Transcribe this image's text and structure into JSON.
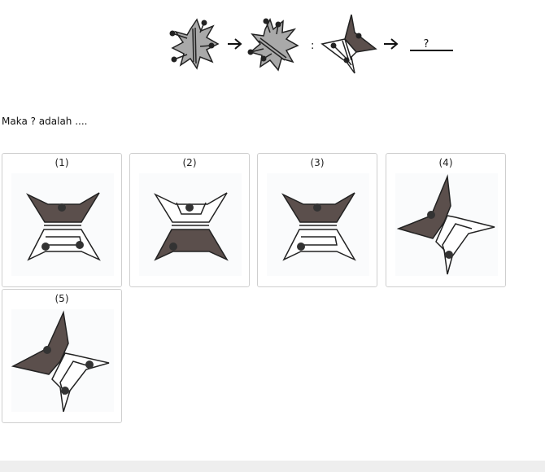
{
  "question": {
    "operator_ratio": ":",
    "unknown_mark": "?"
  },
  "prompt": "Maka ? adalah ....",
  "options": [
    {
      "label": "(1)"
    },
    {
      "label": "(2)"
    },
    {
      "label": "(3)"
    },
    {
      "label": "(4)"
    },
    {
      "label": "(5)"
    }
  ],
  "colors": {
    "dark_fill": "#5b4f4c",
    "grey_fill": "#a9a9a9",
    "stroke": "#222222",
    "dot": "#333333"
  }
}
